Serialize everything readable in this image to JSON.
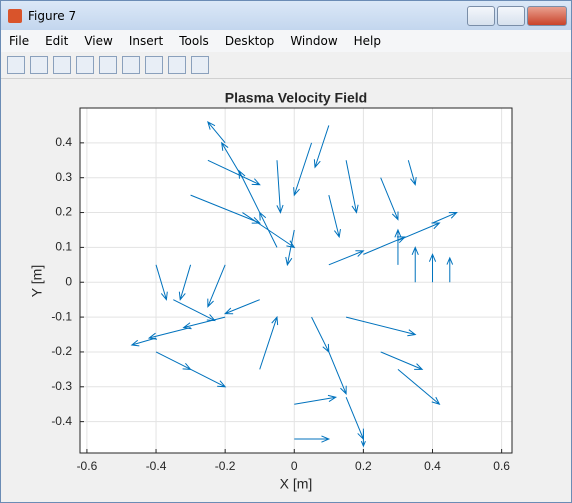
{
  "window": {
    "title": "Figure 7",
    "menu": [
      "File",
      "Edit",
      "View",
      "Insert",
      "Tools",
      "Desktop",
      "Window",
      "Help"
    ]
  },
  "chart_data": {
    "type": "quiver",
    "title": "Plasma Velocity Field",
    "xlabel": "X [m]",
    "ylabel": "Y [m]",
    "color": "#0072bd",
    "grid": true,
    "xlim": [
      -0.62,
      0.63
    ],
    "ylim": [
      -0.49,
      0.5
    ],
    "xticks": [
      -0.6,
      -0.4,
      -0.2,
      0,
      0.2,
      0.4,
      0.6
    ],
    "yticks": [
      -0.4,
      -0.3,
      -0.2,
      -0.1,
      0,
      0.1,
      0.2,
      0.3,
      0.4
    ],
    "x": [
      -0.05,
      -0.1,
      -0.15,
      -0.2,
      -0.25,
      -0.3,
      -0.15,
      0.1,
      0.2,
      0.3,
      0.4,
      0.4,
      0.35,
      0.45,
      0.3,
      0.25,
      0.15,
      0.1,
      0.33,
      0.05,
      0.1,
      0.15,
      0.2,
      0.0,
      0.0,
      0.25,
      0.3,
      0.15,
      -0.1,
      -0.1,
      -0.2,
      -0.3,
      -0.4,
      -0.35,
      -0.4,
      -0.3,
      -0.2,
      -0.3,
      -0.4,
      0.05,
      0.1,
      -0.05,
      0.0
    ],
    "y": [
      0.1,
      0.2,
      0.3,
      0.4,
      0.35,
      0.25,
      0.2,
      0.05,
      0.08,
      0.12,
      0.17,
      0.0,
      0.0,
      0.0,
      0.05,
      0.3,
      0.35,
      0.25,
      0.35,
      -0.1,
      -0.2,
      -0.33,
      -0.42,
      -0.35,
      -0.45,
      -0.2,
      -0.25,
      -0.1,
      -0.25,
      -0.05,
      -0.1,
      -0.13,
      -0.16,
      -0.05,
      -0.2,
      -0.25,
      0.05,
      0.05,
      0.05,
      0.4,
      0.45,
      0.35,
      0.15
    ],
    "u": [
      -0.05,
      -0.06,
      -0.06,
      -0.05,
      0.15,
      0.2,
      0.15,
      0.1,
      0.12,
      0.12,
      0.07,
      0,
      0,
      0,
      0,
      0.05,
      0.03,
      0.03,
      0.02,
      0.05,
      0.05,
      0.05,
      0,
      0.12,
      0.1,
      0.12,
      0.12,
      0.2,
      0.05,
      -0.1,
      -0.12,
      -0.12,
      -0.07,
      0.12,
      0.1,
      0.1,
      -0.05,
      -0.03,
      0.03,
      -0.05,
      -0.04,
      0.01,
      -0.02
    ],
    "v": [
      0.1,
      0.12,
      0.1,
      0.06,
      -0.07,
      -0.08,
      -0.1,
      0.04,
      0.05,
      0.05,
      0.03,
      0.08,
      0.1,
      0.07,
      0.1,
      -0.12,
      -0.15,
      -0.12,
      -0.07,
      -0.1,
      -0.12,
      -0.12,
      -0.05,
      0.02,
      0,
      -0.05,
      -0.1,
      -0.05,
      0.15,
      -0.04,
      -0.03,
      -0.03,
      -0.02,
      -0.06,
      -0.05,
      -0.05,
      -0.12,
      -0.1,
      -0.1,
      -0.15,
      -0.12,
      -0.15,
      -0.1
    ]
  }
}
